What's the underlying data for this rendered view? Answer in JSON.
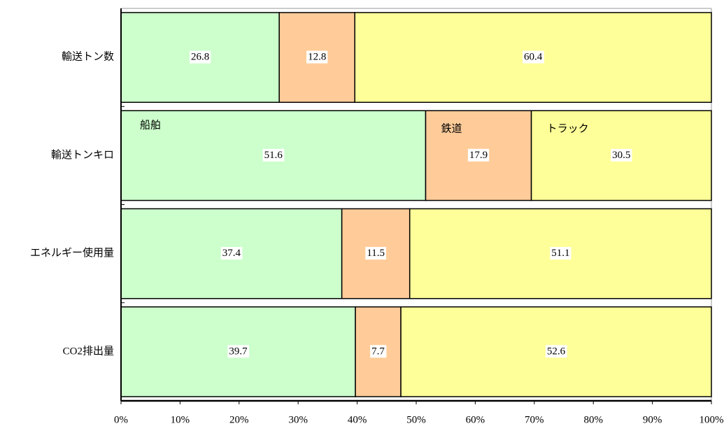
{
  "chart_data": {
    "type": "stacked-bar-horizontal",
    "categories": [
      "輸送トン数",
      "輸送トンキロ",
      "エネルギー使用量",
      "CO2排出量"
    ],
    "series": [
      {
        "name": "船舶",
        "color": "#ccffcc",
        "values": [
          26.8,
          51.6,
          37.4,
          39.7
        ]
      },
      {
        "name": "鉄道",
        "color": "#ffcc99",
        "values": [
          12.8,
          17.9,
          11.5,
          7.7
        ]
      },
      {
        "name": "トラック",
        "color": "#ffff99",
        "values": [
          60.4,
          30.5,
          51.1,
          52.6
        ]
      }
    ],
    "xlim": [
      0,
      100
    ],
    "xticks": [
      {
        "value": 0,
        "label": "0%"
      },
      {
        "value": 10,
        "label": "10%"
      },
      {
        "value": 20,
        "label": "20%"
      },
      {
        "value": 30,
        "label": "30%"
      },
      {
        "value": 40,
        "label": "40%"
      },
      {
        "value": 50,
        "label": "50%"
      },
      {
        "value": 60,
        "label": "60%"
      },
      {
        "value": 70,
        "label": "70%"
      },
      {
        "value": 80,
        "label": "80%"
      },
      {
        "value": 90,
        "label": "90%"
      },
      {
        "value": 100,
        "label": "100%"
      }
    ],
    "grid": false
  }
}
